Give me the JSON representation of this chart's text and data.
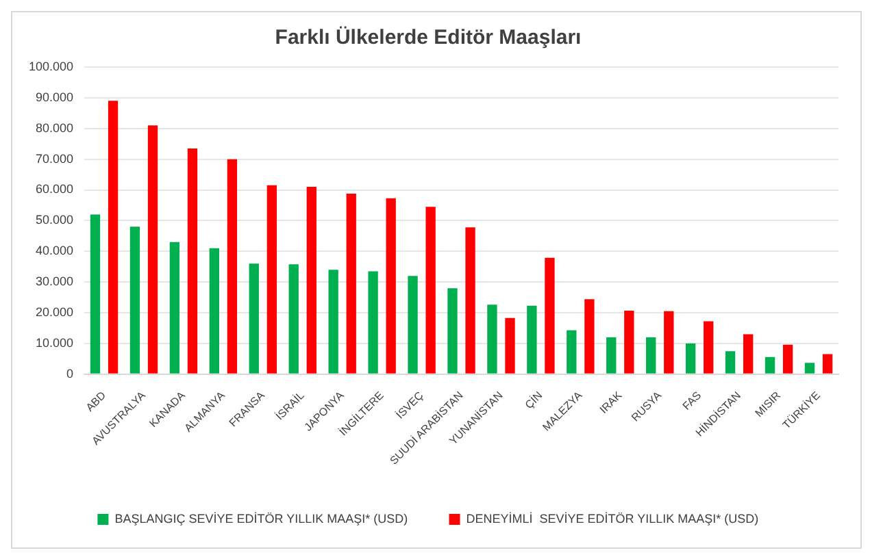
{
  "chart_data": {
    "type": "bar",
    "title": "Farklı Ülkelerde Editör Maaşları",
    "categories": [
      "ABD",
      "AVUSTRALYA",
      "KANADA",
      "ALMANYA",
      "FRANSA",
      "İSRAİL",
      "JAPONYA",
      "İNGİLTERE",
      "İSVEÇ",
      "SUUDİ ARABİSTAN",
      "YUNANİSTAN",
      "ÇİN",
      "MALEZYA",
      "IRAK",
      "RUSYA",
      "FAS",
      "HİNDİSTAN",
      "MISIR",
      "TÜRKİYE"
    ],
    "series": [
      {
        "name": "BAŞLANGIÇ SEVİYE EDİTÖR YILLIK MAAŞI* (USD)",
        "color": "#00b050",
        "values": [
          52000,
          48000,
          43000,
          41000,
          36000,
          35800,
          34000,
          33500,
          32000,
          28000,
          22600,
          22300,
          14300,
          12000,
          12000,
          10000,
          7500,
          5600,
          3700
        ]
      },
      {
        "name": "DENEYİMLİ  SEVİYE EDİTÖR YILLIK MAAŞI* (USD)",
        "color": "#ff0000",
        "values": [
          89000,
          81000,
          73500,
          70000,
          61500,
          61000,
          58800,
          57300,
          54500,
          47800,
          18300,
          37900,
          24400,
          20700,
          20500,
          17200,
          13000,
          9600,
          6500
        ]
      }
    ],
    "ylim": [
      0,
      100000
    ],
    "yticks": [
      0,
      {
        "value": 10000,
        "label": "10.000"
      },
      {
        "value": 20000,
        "label": "20.000"
      },
      {
        "value": 30000,
        "label": "30.000"
      },
      {
        "value": 40000,
        "label": "40.000"
      },
      {
        "value": 50000,
        "label": "50.000"
      },
      {
        "value": 60000,
        "label": "60.000"
      },
      {
        "value": 70000,
        "label": "70.000"
      },
      {
        "value": 80000,
        "label": "80.000"
      },
      {
        "value": 90000,
        "label": "90.000"
      },
      {
        "value": 100000,
        "label": "100.000"
      }
    ],
    "grid": "y",
    "legend": "bottom"
  }
}
